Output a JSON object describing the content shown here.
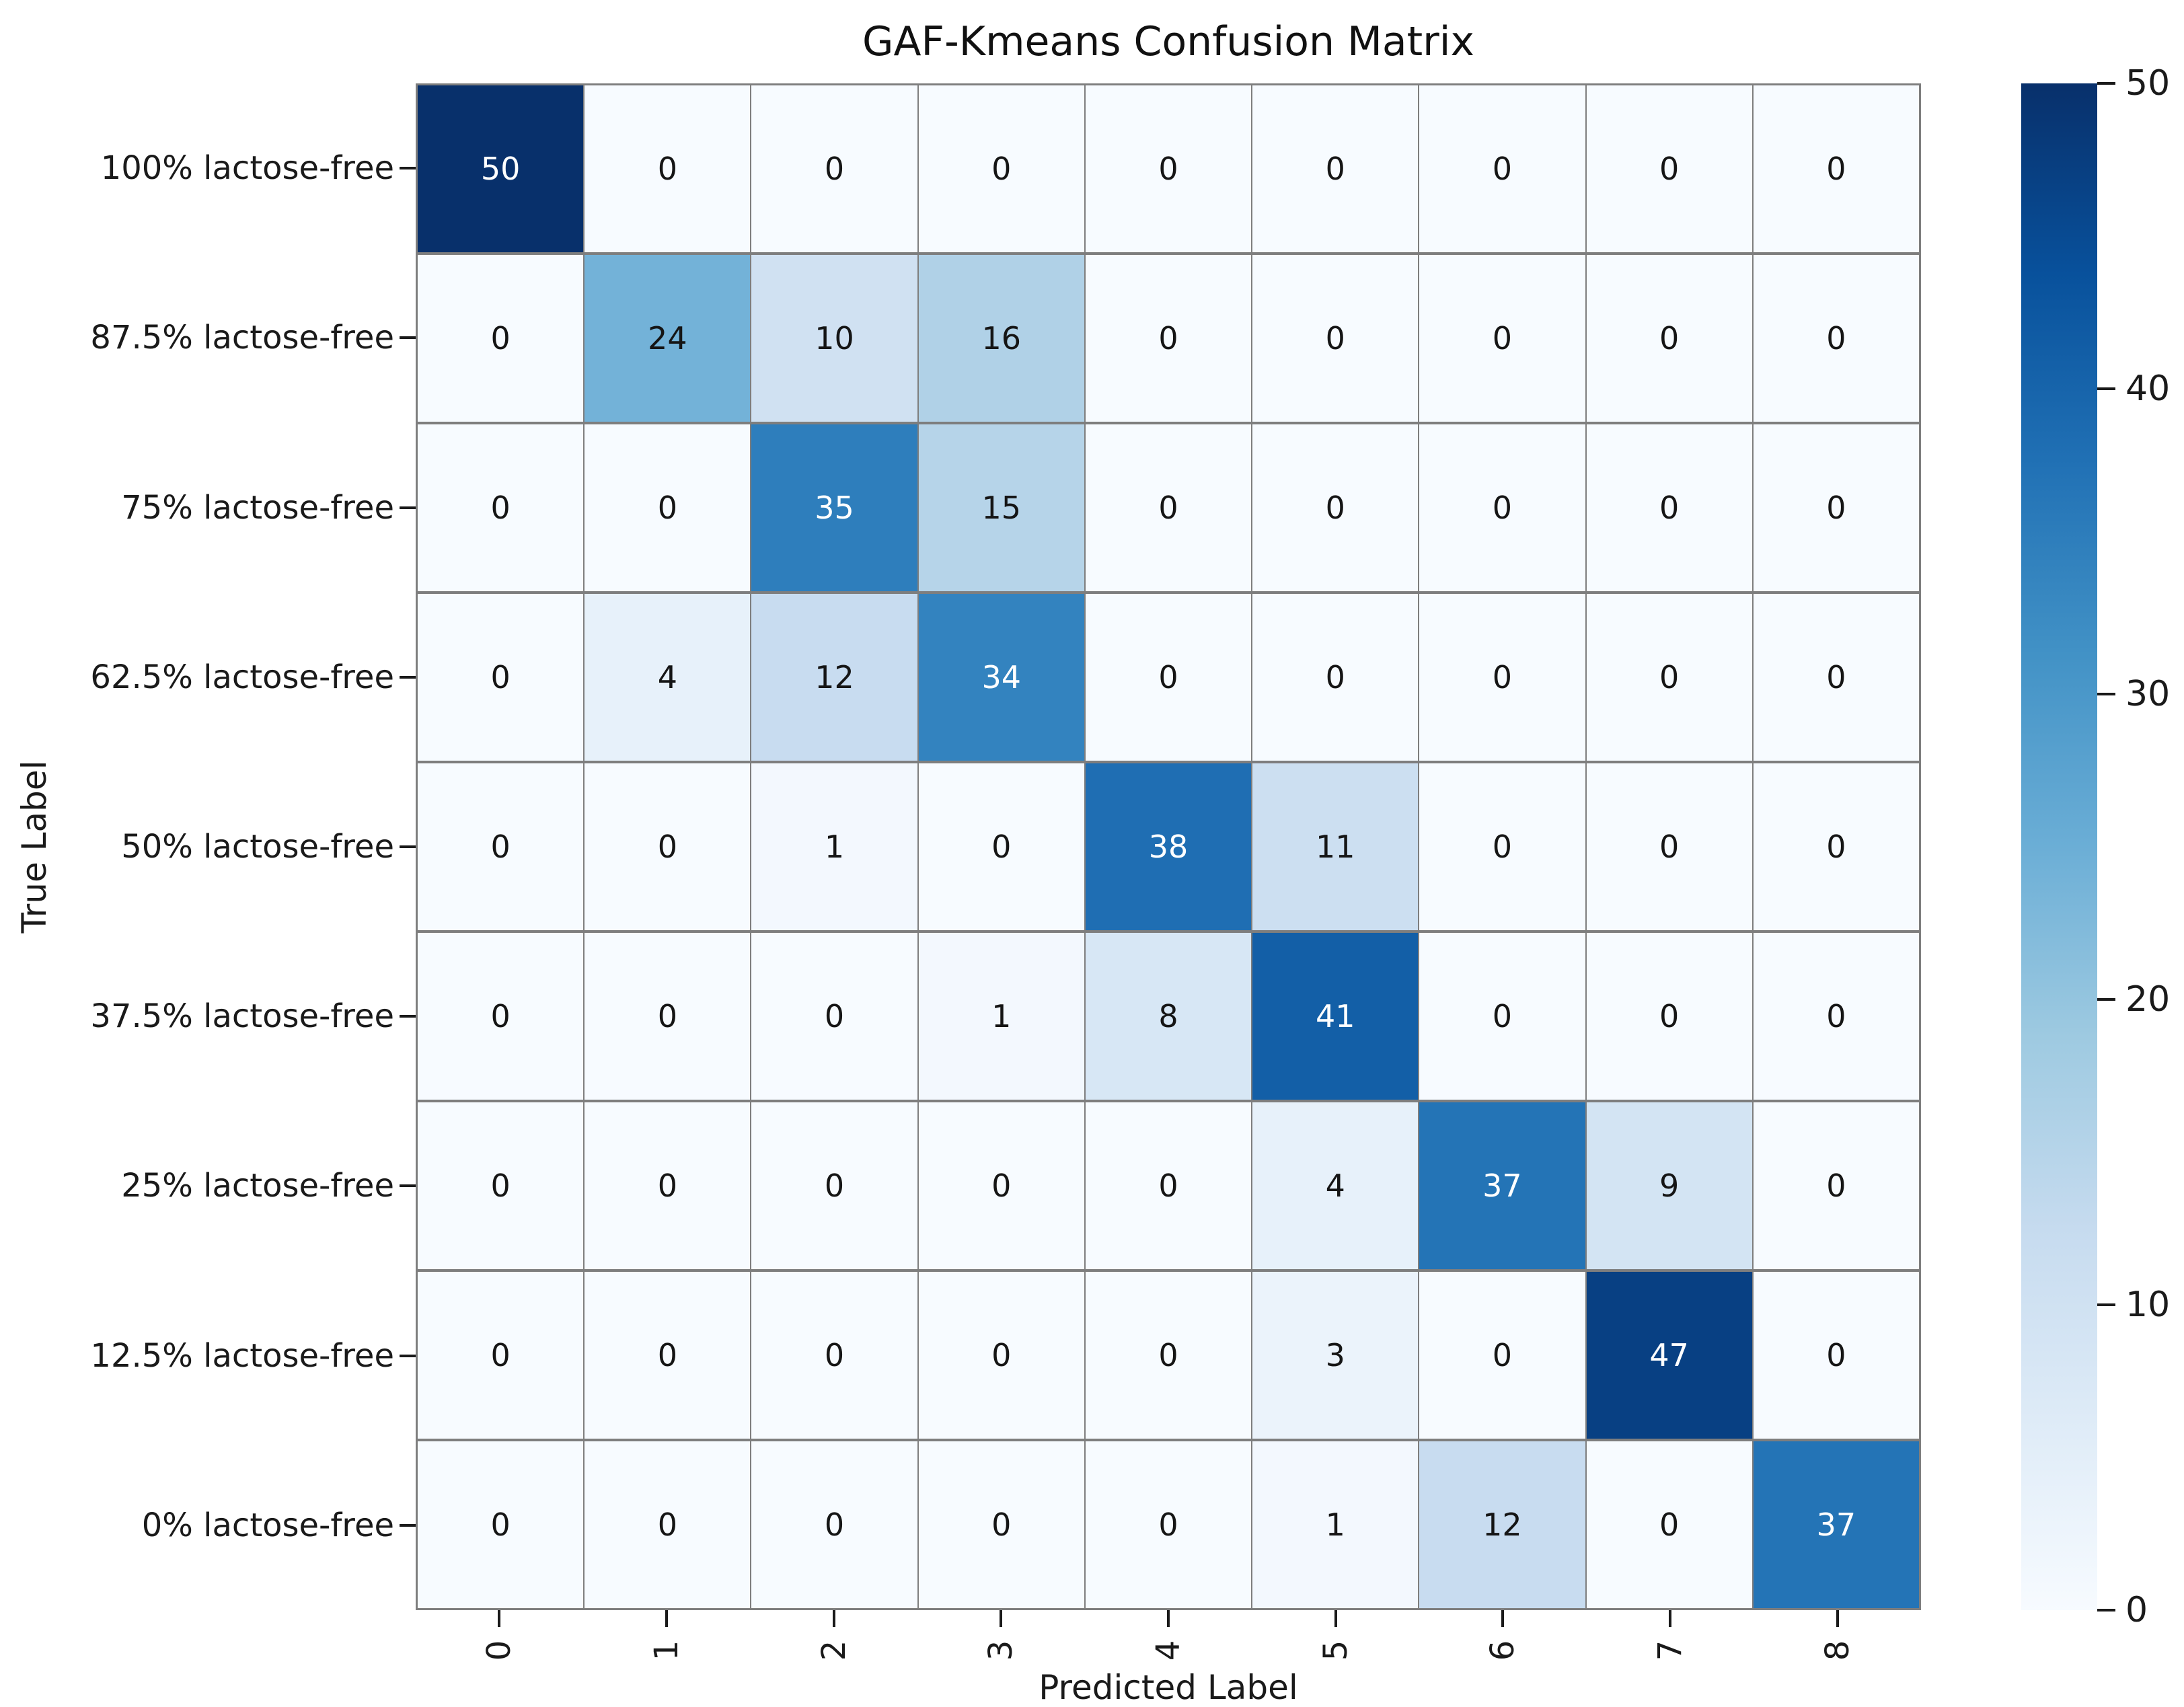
{
  "title": "GAF-Kmeans Confusion Matrix",
  "chart_data": {
    "type": "heatmap",
    "title": "GAF-Kmeans Confusion Matrix",
    "xlabel": "Predicted Label",
    "ylabel": "True Label",
    "x_tick_labels": [
      "0",
      "1",
      "2",
      "3",
      "4",
      "5",
      "6",
      "7",
      "8"
    ],
    "y_tick_labels": [
      "100% lactose-free",
      "87.5% lactose-free",
      "75% lactose-free",
      "62.5% lactose-free",
      "50% lactose-free",
      "37.5% lactose-free",
      "25% lactose-free",
      "12.5% lactose-free",
      "0% lactose-free"
    ],
    "matrix": [
      [
        50,
        0,
        0,
        0,
        0,
        0,
        0,
        0,
        0
      ],
      [
        0,
        24,
        10,
        16,
        0,
        0,
        0,
        0,
        0
      ],
      [
        0,
        0,
        35,
        15,
        0,
        0,
        0,
        0,
        0
      ],
      [
        0,
        4,
        12,
        34,
        0,
        0,
        0,
        0,
        0
      ],
      [
        0,
        0,
        1,
        0,
        38,
        11,
        0,
        0,
        0
      ],
      [
        0,
        0,
        0,
        1,
        8,
        41,
        0,
        0,
        0
      ],
      [
        0,
        0,
        0,
        0,
        0,
        4,
        37,
        9,
        0
      ],
      [
        0,
        0,
        0,
        0,
        0,
        3,
        0,
        47,
        0
      ],
      [
        0,
        0,
        0,
        0,
        0,
        1,
        12,
        0,
        37
      ]
    ],
    "vmin": 0,
    "vmax": 50,
    "colorbar_ticks": [
      0,
      10,
      20,
      30,
      40,
      50
    ],
    "colormap": "Blues",
    "colormap_anchors": [
      "#f7fbff",
      "#deebf7",
      "#c6dbef",
      "#9ecae1",
      "#6baed6",
      "#4292c6",
      "#2171b5",
      "#08519c",
      "#08306b"
    ],
    "grid_color": "#7e7e7e",
    "annotation_light_text": "#ffffff",
    "annotation_dark_text": "#151515",
    "legend": "colorbar-right",
    "grid": true
  }
}
